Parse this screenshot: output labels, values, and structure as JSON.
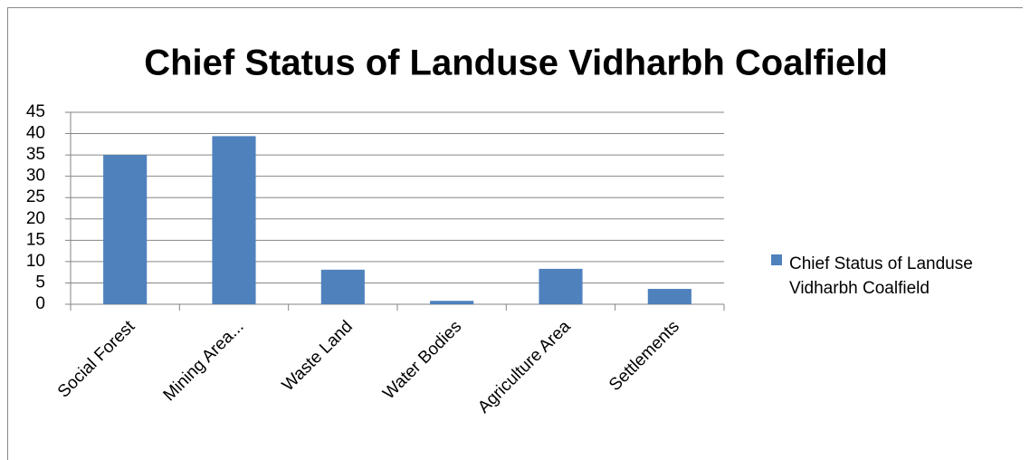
{
  "chart_data": {
    "type": "bar",
    "title": "Chief Status of Landuse Vidharbh Coalfield",
    "categories": [
      "Social Forest",
      "Mining Area...",
      "Waste Land",
      "Water Bodies",
      "Agriculture Area",
      "Settlements"
    ],
    "series": [
      {
        "name": "Chief Status of Landuse Vidharbh Coalfield",
        "color": "#4f81bd",
        "values": [
          35,
          39.4,
          8.1,
          0.8,
          8.3,
          3.6
        ]
      }
    ],
    "ylim": [
      0,
      45
    ],
    "yticks": [
      0,
      5,
      10,
      15,
      20,
      25,
      30,
      35,
      40,
      45
    ],
    "grid": true,
    "legend": "right"
  }
}
